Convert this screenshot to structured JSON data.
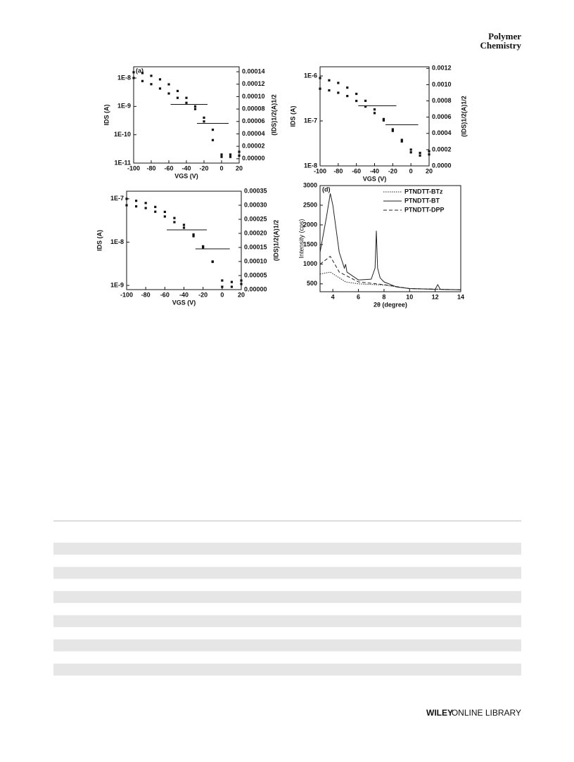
{
  "header": {
    "journal_line1": "Polymer",
    "journal_line2": "Chemistry"
  },
  "chart_data": [
    {
      "type": "scatter",
      "panel_label": "(a)",
      "x_label": "VGS (V)",
      "y_label": "IDS (A)",
      "y2_label": "(IDS)1/2(A)1/2",
      "log_y": true,
      "color": "#111111",
      "x": [
        -100,
        -90,
        -80,
        -70,
        -60,
        -50,
        -40,
        -30,
        -20,
        -10,
        0,
        10,
        20
      ],
      "series": [
        {
          "values": [
            1.6e-08,
            1.5e-08,
            1.2e-08,
            9e-09,
            6e-09,
            3.5e-09,
            2e-09,
            1e-09,
            4e-10,
            1.5e-10,
            2e-11,
            2e-11,
            2.5e-11
          ]
        },
        {
          "axis": "y2",
          "values": [
            0.00013,
            0.000125,
            0.00012,
            0.000113,
            0.000105,
            9.8e-05,
            9e-05,
            8e-05,
            6e-05,
            3e-05,
            3e-06,
            3e-06,
            5e-06
          ]
        }
      ],
      "xlim": [
        -100,
        20
      ],
      "xticks": [
        -100,
        -80,
        -60,
        -40,
        -20,
        0,
        20
      ],
      "ylim": [
        1e-11,
        2.5e-08
      ],
      "yticks": [
        {
          "value": 1e-11,
          "label": "1E-11"
        },
        {
          "value": 1e-10,
          "label": "1E-10"
        },
        {
          "value": 1e-09,
          "label": "1E-9"
        },
        {
          "value": 1e-08,
          "label": "1E-8"
        }
      ],
      "y2lim": [
        -7e-06,
        0.000148
      ],
      "y2ticks": [
        {
          "value": 0,
          "label": "0.00000"
        },
        {
          "value": 2e-05,
          "label": "0.00002"
        },
        {
          "value": 4e-05,
          "label": "0.00004"
        },
        {
          "value": 6e-05,
          "label": "0.00006"
        },
        {
          "value": 8e-05,
          "label": "0.00008"
        },
        {
          "value": 0.0001,
          "label": "0.00010"
        },
        {
          "value": 0.00012,
          "label": "0.00012"
        },
        {
          "value": 0.00014,
          "label": "0.00014"
        }
      ]
    },
    {
      "type": "scatter",
      "x_label": "VGS (V)",
      "y_label": "IDS (A)",
      "y2_label": "(IDS)1/2(A)1/2",
      "log_y": true,
      "color": "#111111",
      "x": [
        -100,
        -90,
        -80,
        -70,
        -60,
        -50,
        -40,
        -30,
        -20,
        -10,
        0,
        10,
        20
      ],
      "series": [
        {
          "values": [
            9e-07,
            8e-07,
            7e-07,
            5.5e-07,
            4e-07,
            2.8e-07,
            1.8e-07,
            1.1e-07,
            6e-08,
            3.5e-08,
            2e-08,
            1.7e-08,
            1.8e-08
          ]
        },
        {
          "axis": "y2",
          "values": [
            0.00095,
            0.00093,
            0.0009,
            0.00086,
            0.0008,
            0.00073,
            0.00065,
            0.00056,
            0.00045,
            0.00032,
            0.0002,
            0.00016,
            0.00018
          ]
        }
      ],
      "xlim": [
        -100,
        20
      ],
      "xticks": [
        -100,
        -80,
        -60,
        -40,
        -20,
        0,
        20
      ],
      "ylim": [
        1e-08,
        1.6e-06
      ],
      "yticks": [
        {
          "value": 1e-08,
          "label": "1E-8"
        },
        {
          "value": 1e-07,
          "label": "1E-7"
        },
        {
          "value": 1e-06,
          "label": "1E-6"
        }
      ],
      "y2lim": [
        0,
        0.00122
      ],
      "y2ticks": [
        {
          "value": 0,
          "label": "0.0000"
        },
        {
          "value": 0.0002,
          "label": "0.0002"
        },
        {
          "value": 0.0004,
          "label": "0.0004"
        },
        {
          "value": 0.0006,
          "label": "0.0006"
        },
        {
          "value": 0.0008,
          "label": "0.0008"
        },
        {
          "value": 0.001,
          "label": "0.0010"
        },
        {
          "value": 0.0012,
          "label": "0.0012"
        }
      ]
    },
    {
      "type": "scatter",
      "x_label": "VGS (V)",
      "y_label": "IDS (A)",
      "y2_label": "(IDS)1/2(A)1/2",
      "log_y": true,
      "color": "#111111",
      "x": [
        -100,
        -90,
        -80,
        -70,
        -60,
        -50,
        -40,
        -30,
        -20,
        -10,
        0,
        10,
        20
      ],
      "series": [
        {
          "values": [
            1e-07,
            9e-08,
            8e-08,
            6.5e-08,
            5e-08,
            3.6e-08,
            2.5e-08,
            1.5e-08,
            8e-09,
            3.5e-09,
            1.3e-09,
            1.2e-09,
            1.3e-09
          ]
        },
        {
          "axis": "y2",
          "values": [
            0.0003,
            0.000296,
            0.00029,
            0.000277,
            0.00026,
            0.00024,
            0.00022,
            0.00019,
            0.00015,
            0.0001,
            1e-05,
            1e-05,
            2e-05
          ]
        }
      ],
      "xlim": [
        -100,
        20
      ],
      "xticks": [
        -100,
        -80,
        -60,
        -40,
        -20,
        0,
        20
      ],
      "ylim": [
        8e-10,
        1.5e-07
      ],
      "yticks": [
        {
          "value": 1e-09,
          "label": "1E-9"
        },
        {
          "value": 1e-08,
          "label": "1E-8"
        },
        {
          "value": 1e-07,
          "label": "1E-7"
        }
      ],
      "y2lim": [
        0,
        0.00035
      ],
      "y2ticks": [
        {
          "value": 0,
          "label": "0.00000"
        },
        {
          "value": 5e-05,
          "label": "0.00005"
        },
        {
          "value": 0.0001,
          "label": "0.00010"
        },
        {
          "value": 0.00015,
          "label": "0.00015"
        },
        {
          "value": 0.0002,
          "label": "0.00020"
        },
        {
          "value": 0.00025,
          "label": "0.00025"
        },
        {
          "value": 0.0003,
          "label": "0.00030"
        },
        {
          "value": 0.00035,
          "label": "0.00035"
        }
      ]
    },
    {
      "type": "line",
      "panel_label": "(d)",
      "x_label": "2θ (degree)",
      "y_label": "Intensity (cps)",
      "legend": "upper right",
      "series": [
        {
          "name": "PTNDTT-BTz",
          "color": "#222222",
          "dash": "dotted",
          "x": [
            3,
            3.8,
            5,
            6,
            8,
            10,
            14
          ],
          "values": [
            750,
            800,
            550,
            500,
            470,
            380,
            350
          ]
        },
        {
          "name": "PTNDTT-BT",
          "color": "#222222",
          "dash": "solid",
          "x": [
            3,
            3.5,
            3.8,
            4,
            4.5,
            4.9,
            5,
            5.1,
            6,
            7,
            7.3,
            7.4,
            7.5,
            7.7,
            8,
            9,
            10,
            12,
            12.2,
            12.4,
            14
          ],
          "values": [
            1300,
            2200,
            2800,
            2500,
            1300,
            900,
            1000,
            800,
            600,
            620,
            900,
            1850,
            900,
            650,
            550,
            420,
            380,
            360,
            480,
            360,
            350
          ]
        },
        {
          "name": "PTNDTT-DPP",
          "color": "#222222",
          "dash": "dashed",
          "x": [
            3,
            3.8,
            4.5,
            6,
            8,
            10,
            14
          ],
          "values": [
            1000,
            1200,
            800,
            550,
            480,
            380,
            350
          ]
        }
      ],
      "xlim": [
        3,
        14
      ],
      "xticks": [
        4,
        6,
        8,
        10,
        12,
        14
      ],
      "ylim": [
        300,
        3000
      ],
      "yticks": [
        500,
        1000,
        1500,
        2000,
        2500,
        3000
      ]
    }
  ],
  "table": {
    "rows": 6
  },
  "footer": {
    "brand": "WILEY",
    "text": "ONLINE LIBRARY"
  }
}
